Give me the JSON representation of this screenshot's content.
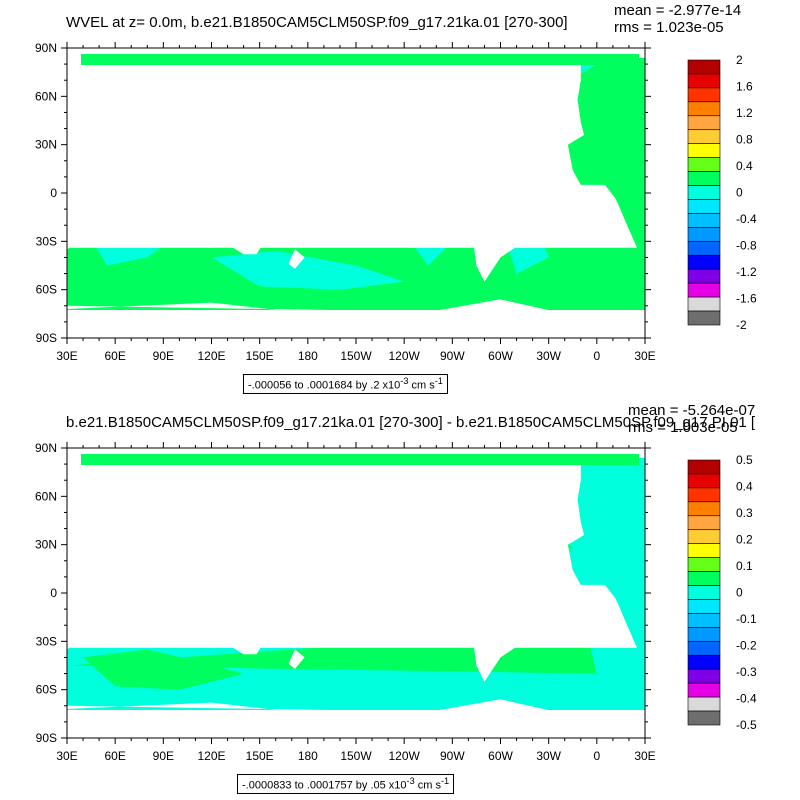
{
  "panels": [
    {
      "title": "WVEL at z=   0.0m, b.e21.B1850CAM5CLM50SP.f09_g17.21ka.01 [270-300]",
      "mean": "mean = -2.977e-14",
      "rms": "rms = 1.023e-05",
      "range_prefix": "-.000056 to .0001684 by .2 x10",
      "range_exp": "-3",
      "range_unit": " cm s",
      "range_unit_exp": "-1",
      "colorbar_labels": [
        "2",
        "1.6",
        "1.2",
        "0.8",
        "0.4",
        "0",
        "-0.4",
        "-0.8",
        "-1.2",
        "-1.6",
        "-2"
      ],
      "field_color": "#00ff5e",
      "alt_color": "#00ffdd"
    },
    {
      "title": "b.e21.B1850CAM5CLM50SP.f09_g17.21ka.01 [270-300] - b.e21.B1850CAM5CLM50SP.f09_g17.PI.01 [",
      "mean": "mean = -5.264e-07",
      "rms": "rms = 1.003e-05",
      "range_prefix": "-.0000833 to .0001757 by .05 x10",
      "range_exp": "-3",
      "range_unit": " cm s",
      "range_unit_exp": "-1",
      "colorbar_labels": [
        "0.5",
        "0.4",
        "0.3",
        "0.2",
        "0.1",
        "0",
        "-0.1",
        "-0.2",
        "-0.3",
        "-0.4",
        "-0.5"
      ],
      "field_color": "#00ffdd",
      "alt_color": "#00ff5e"
    }
  ],
  "lat_labels": [
    "90N",
    "60N",
    "30N",
    "0",
    "30S",
    "60S",
    "90S"
  ],
  "lon_labels": [
    "30E",
    "60E",
    "90E",
    "120E",
    "150E",
    "180",
    "150W",
    "120W",
    "90W",
    "60W",
    "30W",
    "0",
    "30E"
  ],
  "colorbar_colors": [
    "#b30000",
    "#e60000",
    "#ff3300",
    "#ff8000",
    "#ffa640",
    "#ffcc33",
    "#ffff00",
    "#66ff1a",
    "#00ff5e",
    "#00ffdd",
    "#00e6ff",
    "#00bfff",
    "#0099ff",
    "#0066ff",
    "#0000ff",
    "#8000e6",
    "#e600e6",
    "#d9d9d9",
    "#6e6e6e"
  ]
}
